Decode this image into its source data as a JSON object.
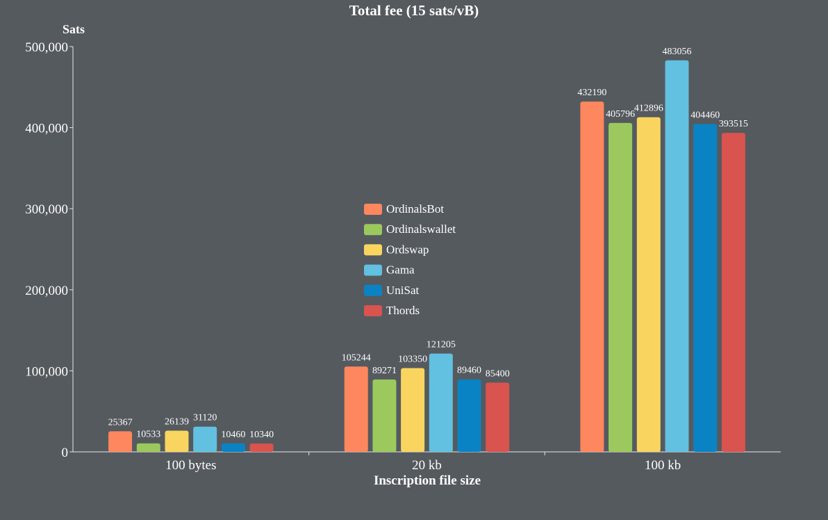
{
  "chart_data": {
    "type": "bar",
    "title": "Total fee (15 sats/vB)",
    "xlabel": "Inscription file size",
    "ylabel": "Sats",
    "categories": [
      "100 bytes",
      "20 kb",
      "100 kb"
    ],
    "ylim": [
      0,
      500000
    ],
    "yticks": [
      0,
      100000,
      200000,
      300000,
      400000,
      500000
    ],
    "ytick_labels": [
      "0",
      "100,000",
      "200,000",
      "300,000",
      "400,000",
      "500,000"
    ],
    "legend_position": "center",
    "grid": false,
    "series": [
      {
        "name": "OrdinalsBot",
        "color": "#ff875f",
        "values": [
          25367,
          105244,
          432190
        ]
      },
      {
        "name": "Ordinalswallet",
        "color": "#9bc95d",
        "values": [
          10533,
          89271,
          405796
        ]
      },
      {
        "name": "Ordswap",
        "color": "#f9d55f",
        "values": [
          26139,
          103350,
          412896
        ]
      },
      {
        "name": "Gama",
        "color": "#62c0e0",
        "values": [
          31120,
          121205,
          483056
        ]
      },
      {
        "name": "UniSat",
        "color": "#0a83c5",
        "values": [
          10460,
          89460,
          404460
        ]
      },
      {
        "name": "Thords",
        "color": "#d9534f",
        "values": [
          10340,
          85400,
          393515
        ]
      }
    ]
  }
}
